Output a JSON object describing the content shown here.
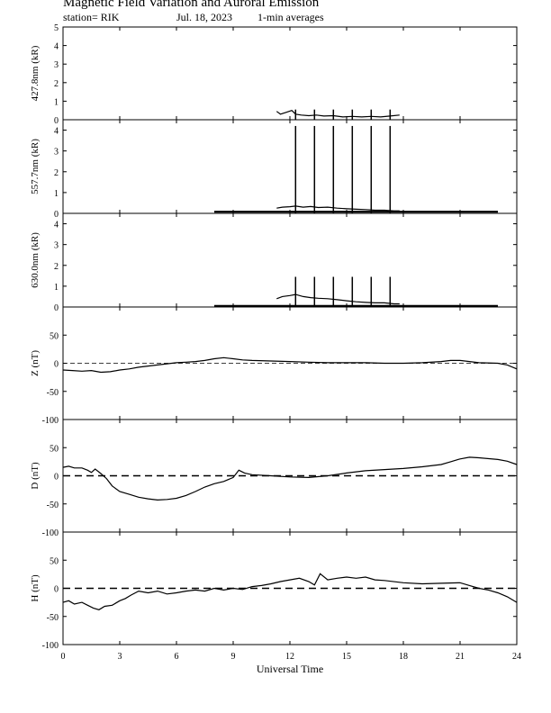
{
  "header": {
    "title": "Magnetic Field Variation and Auroral Emission",
    "station": "station= RIK",
    "date": "Jul.  18,  2023",
    "averaging": "1-min averages"
  },
  "chart_data": [
    {
      "type": "line",
      "ylabel": "427.8nm (kR)",
      "ylim": [
        0,
        5
      ],
      "yticks": [
        0,
        1,
        2,
        3,
        4,
        5
      ],
      "xlim": [
        0,
        24
      ],
      "series": [
        {
          "x": [
            11.3,
            11.5,
            11.8,
            12.1,
            12.3,
            12.6,
            13.0,
            13.4,
            13.8,
            14.3,
            14.8,
            15.3,
            15.8,
            16.3,
            16.8,
            17.3,
            17.8
          ],
          "values": [
            0.45,
            0.3,
            0.4,
            0.5,
            0.3,
            0.25,
            0.22,
            0.25,
            0.2,
            0.22,
            0.15,
            0.18,
            0.15,
            0.18,
            0.15,
            0.2,
            0.25
          ]
        }
      ],
      "spikes": [
        {
          "x": 12.3,
          "value": 0.55
        },
        {
          "x": 13.3,
          "value": 0.55
        },
        {
          "x": 14.3,
          "value": 0.55
        },
        {
          "x": 15.3,
          "value": 0.55
        },
        {
          "x": 16.3,
          "value": 0.55
        },
        {
          "x": 17.3,
          "value": 0.55
        }
      ]
    },
    {
      "type": "line",
      "ylabel": "557.7nm (kR)",
      "ylim": [
        0,
        4.5
      ],
      "yticks": [
        0,
        1,
        2,
        3,
        4
      ],
      "xlim": [
        0,
        24
      ],
      "series": [
        {
          "x": [
            8.0,
            23.0
          ],
          "values": [
            0.08,
            0.08
          ]
        },
        {
          "x": [
            11.3,
            11.6,
            12.0,
            12.3,
            12.7,
            13.1,
            13.5,
            14.0,
            14.5,
            15.0,
            15.5,
            16.0,
            16.5,
            17.0,
            17.5,
            17.8
          ],
          "values": [
            0.25,
            0.3,
            0.32,
            0.35,
            0.3,
            0.33,
            0.28,
            0.3,
            0.25,
            0.22,
            0.2,
            0.18,
            0.15,
            0.15,
            0.12,
            0.12
          ]
        }
      ],
      "spikes": [
        {
          "x": 12.3,
          "value": 4.2
        },
        {
          "x": 13.3,
          "value": 4.2
        },
        {
          "x": 14.3,
          "value": 4.2
        },
        {
          "x": 15.3,
          "value": 4.2
        },
        {
          "x": 16.3,
          "value": 4.2
        },
        {
          "x": 17.3,
          "value": 4.2
        }
      ]
    },
    {
      "type": "line",
      "ylabel": "630.0nm (kR)",
      "ylim": [
        0,
        4.5
      ],
      "yticks": [
        0,
        1,
        2,
        3,
        4
      ],
      "xlim": [
        0,
        24
      ],
      "series": [
        {
          "x": [
            8.0,
            23.0
          ],
          "values": [
            0.05,
            0.05
          ]
        },
        {
          "x": [
            11.3,
            11.6,
            12.0,
            12.3,
            12.7,
            13.1,
            13.5,
            14.0,
            14.5,
            15.0,
            15.5,
            16.0,
            16.5,
            17.0,
            17.5,
            17.8
          ],
          "values": [
            0.4,
            0.5,
            0.55,
            0.6,
            0.5,
            0.45,
            0.42,
            0.4,
            0.35,
            0.3,
            0.25,
            0.22,
            0.2,
            0.2,
            0.15,
            0.15
          ]
        }
      ],
      "spikes": [
        {
          "x": 12.3,
          "value": 1.45
        },
        {
          "x": 13.3,
          "value": 1.45
        },
        {
          "x": 14.3,
          "value": 1.45
        },
        {
          "x": 15.3,
          "value": 1.45
        },
        {
          "x": 16.3,
          "value": 1.45
        },
        {
          "x": 17.3,
          "value": 1.45
        }
      ]
    },
    {
      "type": "line",
      "ylabel": "Z (nT)",
      "ylim": [
        -100,
        100
      ],
      "yticks": [
        -100,
        -50,
        0,
        50
      ],
      "xlim": [
        0,
        24
      ],
      "zero_line": "dashed-thin",
      "series": [
        {
          "x": [
            0,
            0.5,
            1.0,
            1.5,
            2.0,
            2.5,
            3.0,
            3.5,
            4.0,
            4.5,
            5.0,
            5.5,
            6.0,
            6.5,
            7.0,
            7.5,
            8.0,
            8.5,
            9.0,
            9.5,
            10.0,
            11.0,
            12.0,
            13.0,
            14.0,
            15.0,
            16.0,
            17.0,
            18.0,
            19.0,
            20.0,
            20.5,
            21.0,
            21.5,
            22.0,
            23.0,
            23.5,
            24.0
          ],
          "values": [
            -12,
            -13,
            -14,
            -13,
            -16,
            -15,
            -12,
            -10,
            -7,
            -5,
            -3,
            -1,
            1,
            2,
            3,
            5,
            8,
            10,
            8,
            6,
            5,
            4,
            3,
            2,
            1,
            1,
            1,
            0,
            0,
            1,
            3,
            5,
            5,
            3,
            1,
            0,
            -3,
            -10
          ]
        }
      ]
    },
    {
      "type": "line",
      "ylabel": "D (nT)",
      "ylim": [
        -100,
        100
      ],
      "yticks": [
        -100,
        -50,
        0,
        50
      ],
      "xlim": [
        0,
        24
      ],
      "zero_line": "dashed-thick",
      "series": [
        {
          "x": [
            0,
            0.3,
            0.6,
            1.0,
            1.3,
            1.5,
            1.7,
            2.0,
            2.3,
            2.6,
            3.0,
            3.5,
            4.0,
            4.5,
            5.0,
            5.5,
            6.0,
            6.5,
            7.0,
            7.5,
            8.0,
            8.5,
            9.0,
            9.3,
            9.6,
            10.0,
            11.0,
            12.0,
            13.0,
            14.0,
            15.0,
            16.0,
            17.0,
            18.0,
            19.0,
            20.0,
            20.5,
            21.0,
            21.5,
            22.0,
            23.0,
            23.5,
            24.0
          ],
          "values": [
            15,
            17,
            14,
            14,
            10,
            6,
            12,
            4,
            -5,
            -18,
            -28,
            -33,
            -38,
            -41,
            -43,
            -42,
            -40,
            -35,
            -28,
            -20,
            -14,
            -10,
            -3,
            10,
            5,
            2,
            0,
            -2,
            -3,
            0,
            5,
            9,
            11,
            13,
            16,
            20,
            25,
            30,
            33,
            32,
            29,
            26,
            20
          ]
        }
      ]
    },
    {
      "type": "line",
      "ylabel": "H (nT)",
      "ylim": [
        -100,
        100
      ],
      "yticks": [
        -100,
        -50,
        0,
        50
      ],
      "xlim": [
        0,
        24
      ],
      "zero_line": "dashed-thick",
      "series": [
        {
          "x": [
            0,
            0.3,
            0.6,
            1.0,
            1.3,
            1.6,
            1.9,
            2.2,
            2.6,
            3.0,
            3.3,
            3.6,
            4.0,
            4.5,
            5.0,
            5.5,
            6.0,
            6.5,
            7.0,
            7.5,
            8.0,
            8.5,
            9.0,
            9.5,
            10.0,
            10.5,
            11.0,
            11.5,
            12.0,
            12.5,
            13.0,
            13.3,
            13.6,
            14.0,
            14.5,
            15.0,
            15.5,
            16.0,
            16.5,
            17.0,
            18.0,
            19.0,
            20.0,
            21.0,
            21.5,
            22.0,
            22.5,
            23.0,
            23.5,
            24.0
          ],
          "values": [
            -25,
            -22,
            -28,
            -25,
            -30,
            -35,
            -38,
            -32,
            -30,
            -22,
            -18,
            -12,
            -5,
            -8,
            -5,
            -10,
            -8,
            -5,
            -3,
            -5,
            0,
            -3,
            0,
            -2,
            3,
            5,
            8,
            12,
            15,
            18,
            12,
            6,
            26,
            15,
            18,
            20,
            18,
            20,
            15,
            14,
            10,
            8,
            9,
            10,
            5,
            0,
            -3,
            -8,
            -15,
            -25
          ]
        }
      ]
    }
  ],
  "x_axis": {
    "label": "Universal Time",
    "ticks": [
      "0",
      "3",
      "6",
      "9",
      "12",
      "15",
      "18",
      "21",
      "24"
    ],
    "tick_values": [
      0,
      3,
      6,
      9,
      12,
      15,
      18,
      21,
      24
    ]
  }
}
